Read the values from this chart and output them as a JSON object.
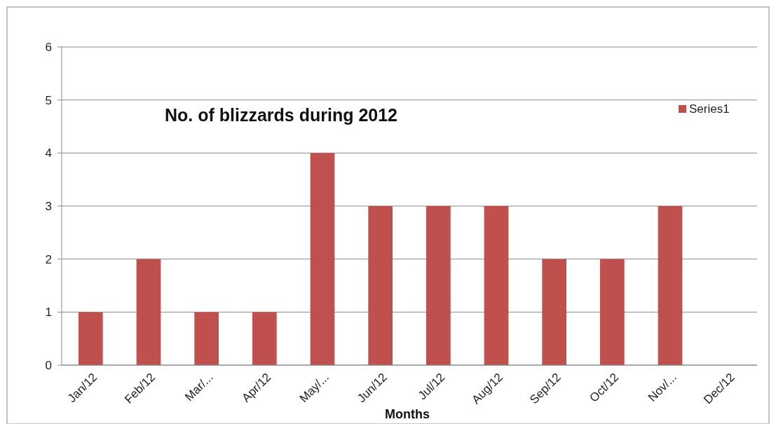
{
  "chart_data": {
    "type": "bar",
    "title": "No.  of blizzards during 2012",
    "xlabel": "Months",
    "categories": [
      "Jan/12",
      "Feb/12",
      "Mar/...",
      "Apr/12",
      "May/...",
      "Jun/12",
      "Jul/12",
      "Aug/12",
      "Sep/12",
      "Oct/12",
      "Nov/...",
      "Dec/12"
    ],
    "series": [
      {
        "name": "Series1",
        "color": "#c0504d",
        "values": [
          1,
          2,
          1,
          1,
          4,
          3,
          3,
          3,
          2,
          2,
          3,
          0
        ]
      }
    ],
    "ylim": [
      0,
      6
    ],
    "yticks": [
      0,
      1,
      2,
      3,
      4,
      5,
      6
    ],
    "grid": "y",
    "legend": "right"
  }
}
